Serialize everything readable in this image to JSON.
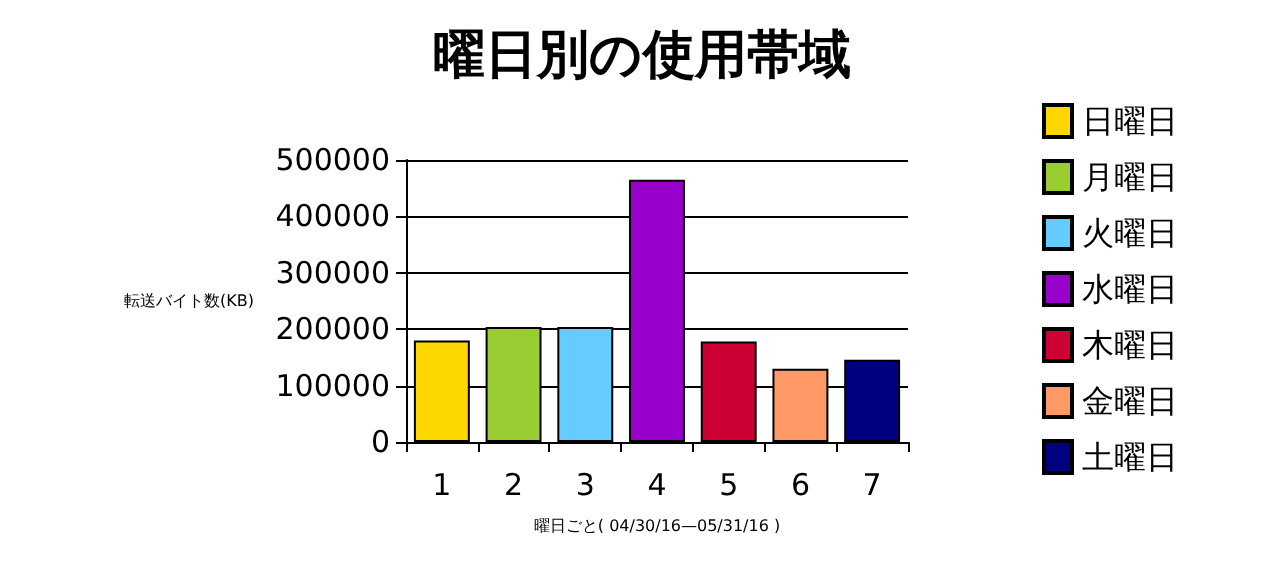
{
  "chart_data": {
    "type": "bar",
    "title": "曜日別の使用帯域",
    "xlabel": "曜日ごと( 04/30/16—05/31/16 )",
    "ylabel": "転送バイト数(KB)",
    "categories": [
      "1",
      "2",
      "3",
      "4",
      "5",
      "6",
      "7"
    ],
    "series": [
      {
        "name": "日曜日",
        "color": "#ffd700",
        "values": [
          180000,
          null,
          null,
          null,
          null,
          null,
          null
        ]
      },
      {
        "name": "月曜日",
        "color": "#9acd32",
        "values": [
          null,
          204000,
          null,
          null,
          null,
          null,
          null
        ]
      },
      {
        "name": "火曜日",
        "color": "#66ccff",
        "values": [
          null,
          null,
          204000,
          null,
          null,
          null,
          null
        ]
      },
      {
        "name": "水曜日",
        "color": "#9900cc",
        "values": [
          null,
          null,
          null,
          465000,
          null,
          null,
          null
        ]
      },
      {
        "name": "木曜日",
        "color": "#cc0033",
        "values": [
          null,
          null,
          null,
          null,
          178000,
          null,
          null
        ]
      },
      {
        "name": "金曜日",
        "color": "#ff9966",
        "values": [
          null,
          null,
          null,
          null,
          null,
          130000,
          null
        ]
      },
      {
        "name": "土曜日",
        "color": "#000080",
        "values": [
          null,
          null,
          null,
          null,
          null,
          null,
          146000
        ]
      }
    ],
    "ylim": [
      0,
      500000
    ],
    "yticks": [
      0,
      100000,
      200000,
      300000,
      400000,
      500000
    ],
    "grid": "y",
    "legend": "right"
  }
}
